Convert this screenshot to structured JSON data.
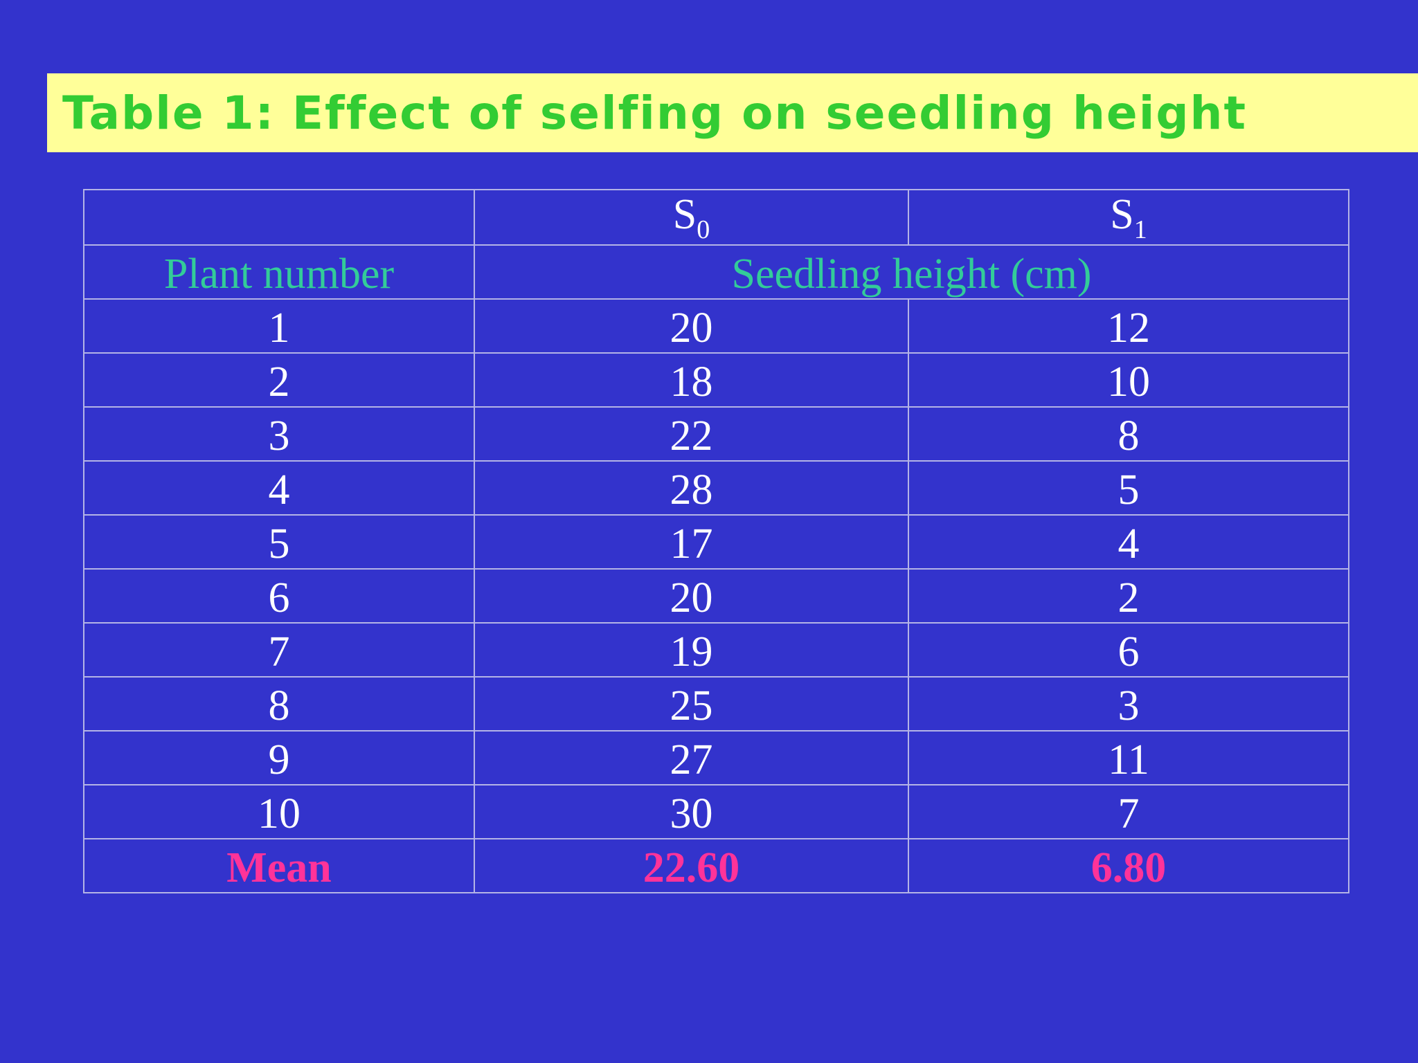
{
  "title": "Table 1: Effect of selfing on seedling height",
  "header": {
    "s0": "S",
    "s0_sub": "0",
    "s1": "S",
    "s1_sub": "1",
    "plant_number": "Plant number",
    "seedling_height": "Seedling height (cm)"
  },
  "rows": [
    {
      "plant": "1",
      "s0": "20",
      "s1": "12"
    },
    {
      "plant": "2",
      "s0": "18",
      "s1": "10"
    },
    {
      "plant": "3",
      "s0": "22",
      "s1": "8"
    },
    {
      "plant": "4",
      "s0": "28",
      "s1": "5"
    },
    {
      "plant": "5",
      "s0": "17",
      "s1": "4"
    },
    {
      "plant": "6",
      "s0": "20",
      "s1": "2"
    },
    {
      "plant": "7",
      "s0": "19",
      "s1": "6"
    },
    {
      "plant": "8",
      "s0": "25",
      "s1": "3"
    },
    {
      "plant": "9",
      "s0": "27",
      "s1": "11"
    },
    {
      "plant": "10",
      "s0": "30",
      "s1": "7"
    }
  ],
  "mean": {
    "label": "Mean",
    "s0": "22.60",
    "s1": "6.80"
  },
  "colors": {
    "background": "#3333cc",
    "title_bar": "#ffff99",
    "title_text": "#33cc33",
    "header_text": "#33cc99",
    "mean_text": "#ff3399",
    "cell_text": "#ffffff"
  }
}
